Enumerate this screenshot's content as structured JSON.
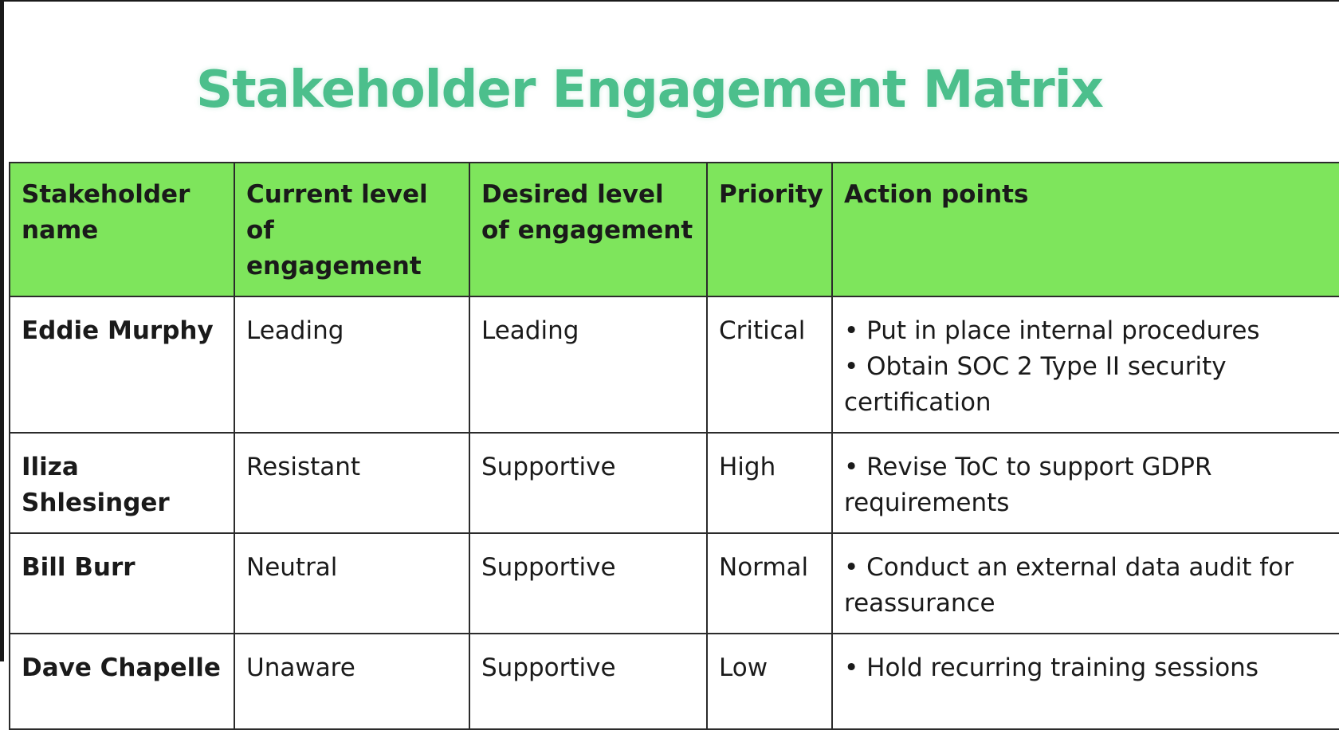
{
  "title": "Stakeholder Engagement Matrix",
  "colors": {
    "title": "#4cbf8c",
    "header_background": "#7ee55c",
    "grid_lines": "#2b2b2b",
    "text": "#1a1a1a"
  },
  "table": {
    "headers": [
      "Stakeholder name",
      "Current level of engagement",
      "Desired level of engagement",
      "Priority",
      "Action points"
    ],
    "rows": [
      {
        "name": "Eddie Murphy",
        "current": "Leading",
        "desired": "Leading",
        "priority": "Critical",
        "actions": [
          "Put in place internal procedures",
          "Obtain SOC 2 Type II security certification"
        ]
      },
      {
        "name": "Iliza Shlesinger",
        "current": "Resistant",
        "desired": "Supportive",
        "priority": "High",
        "actions": [
          "Revise ToC to support GDPR requirements"
        ]
      },
      {
        "name": "Bill Burr",
        "current": "Neutral",
        "desired": "Supportive",
        "priority": "Normal",
        "actions": [
          "Conduct an external data audit for reassurance"
        ]
      },
      {
        "name": "Dave Chapelle",
        "current": "Unaware",
        "desired": "Supportive",
        "priority": "Low",
        "actions": [
          "Hold recurring training sessions"
        ]
      }
    ]
  }
}
